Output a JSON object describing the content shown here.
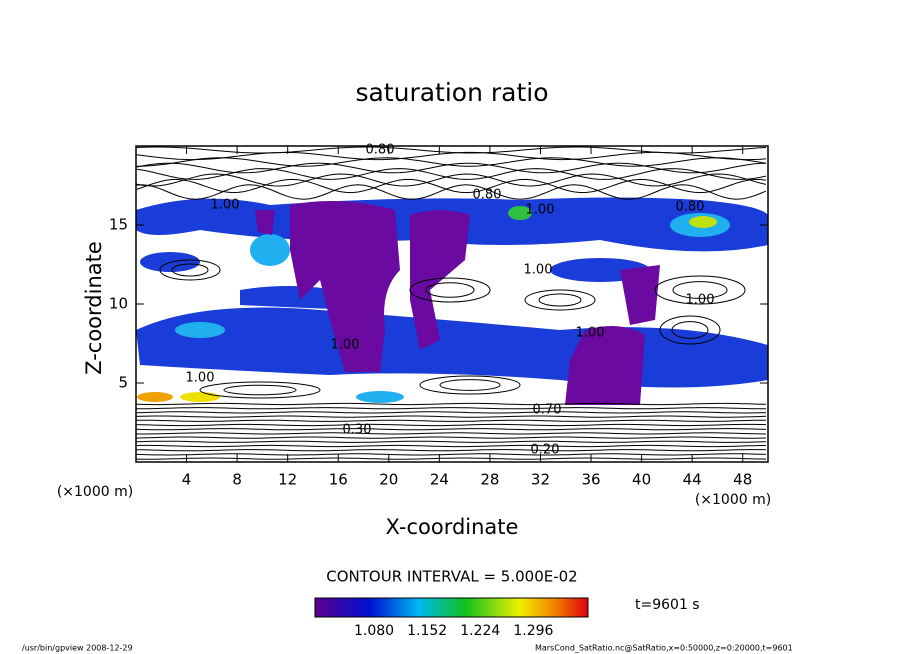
{
  "chart_data": {
    "type": "contour",
    "title": "saturation ratio",
    "x_label": "X-coordinate",
    "y_label": "Z-coordinate",
    "x_unit": "(×1000 m)",
    "y_unit": "(×1000 m)",
    "xlim": [
      0,
      50
    ],
    "xticks": [
      4,
      8,
      12,
      16,
      20,
      24,
      28,
      32,
      36,
      40,
      44,
      48
    ],
    "ylim": [
      0,
      20
    ],
    "yticks": [
      5,
      10,
      15
    ],
    "contour_interval": "CONTOUR INTERVAL = 5.000E-02",
    "time_label": "t=9601 s",
    "colorbar": {
      "lim": [
        1.0,
        1.37
      ],
      "ticks": [
        {
          "value": 1.08,
          "label": "1.080"
        },
        {
          "value": 1.152,
          "label": "1.152"
        },
        {
          "value": 1.224,
          "label": "1.224"
        },
        {
          "value": 1.296,
          "label": "1.296"
        }
      ]
    },
    "contour_labels": [
      "0.80",
      "1.00",
      "0.80",
      "1.00",
      "0.80",
      "1.00",
      "1.00",
      "1.00",
      "1.00",
      "1.00",
      "0.70",
      "0.20",
      "0.30"
    ],
    "footer_left": "/usr/bin/gpview   2008-12-29",
    "footer_right": "MarsCond_SatRatio.nc@SatRatio,x=0:50000,z=0:20000,t=9601"
  }
}
